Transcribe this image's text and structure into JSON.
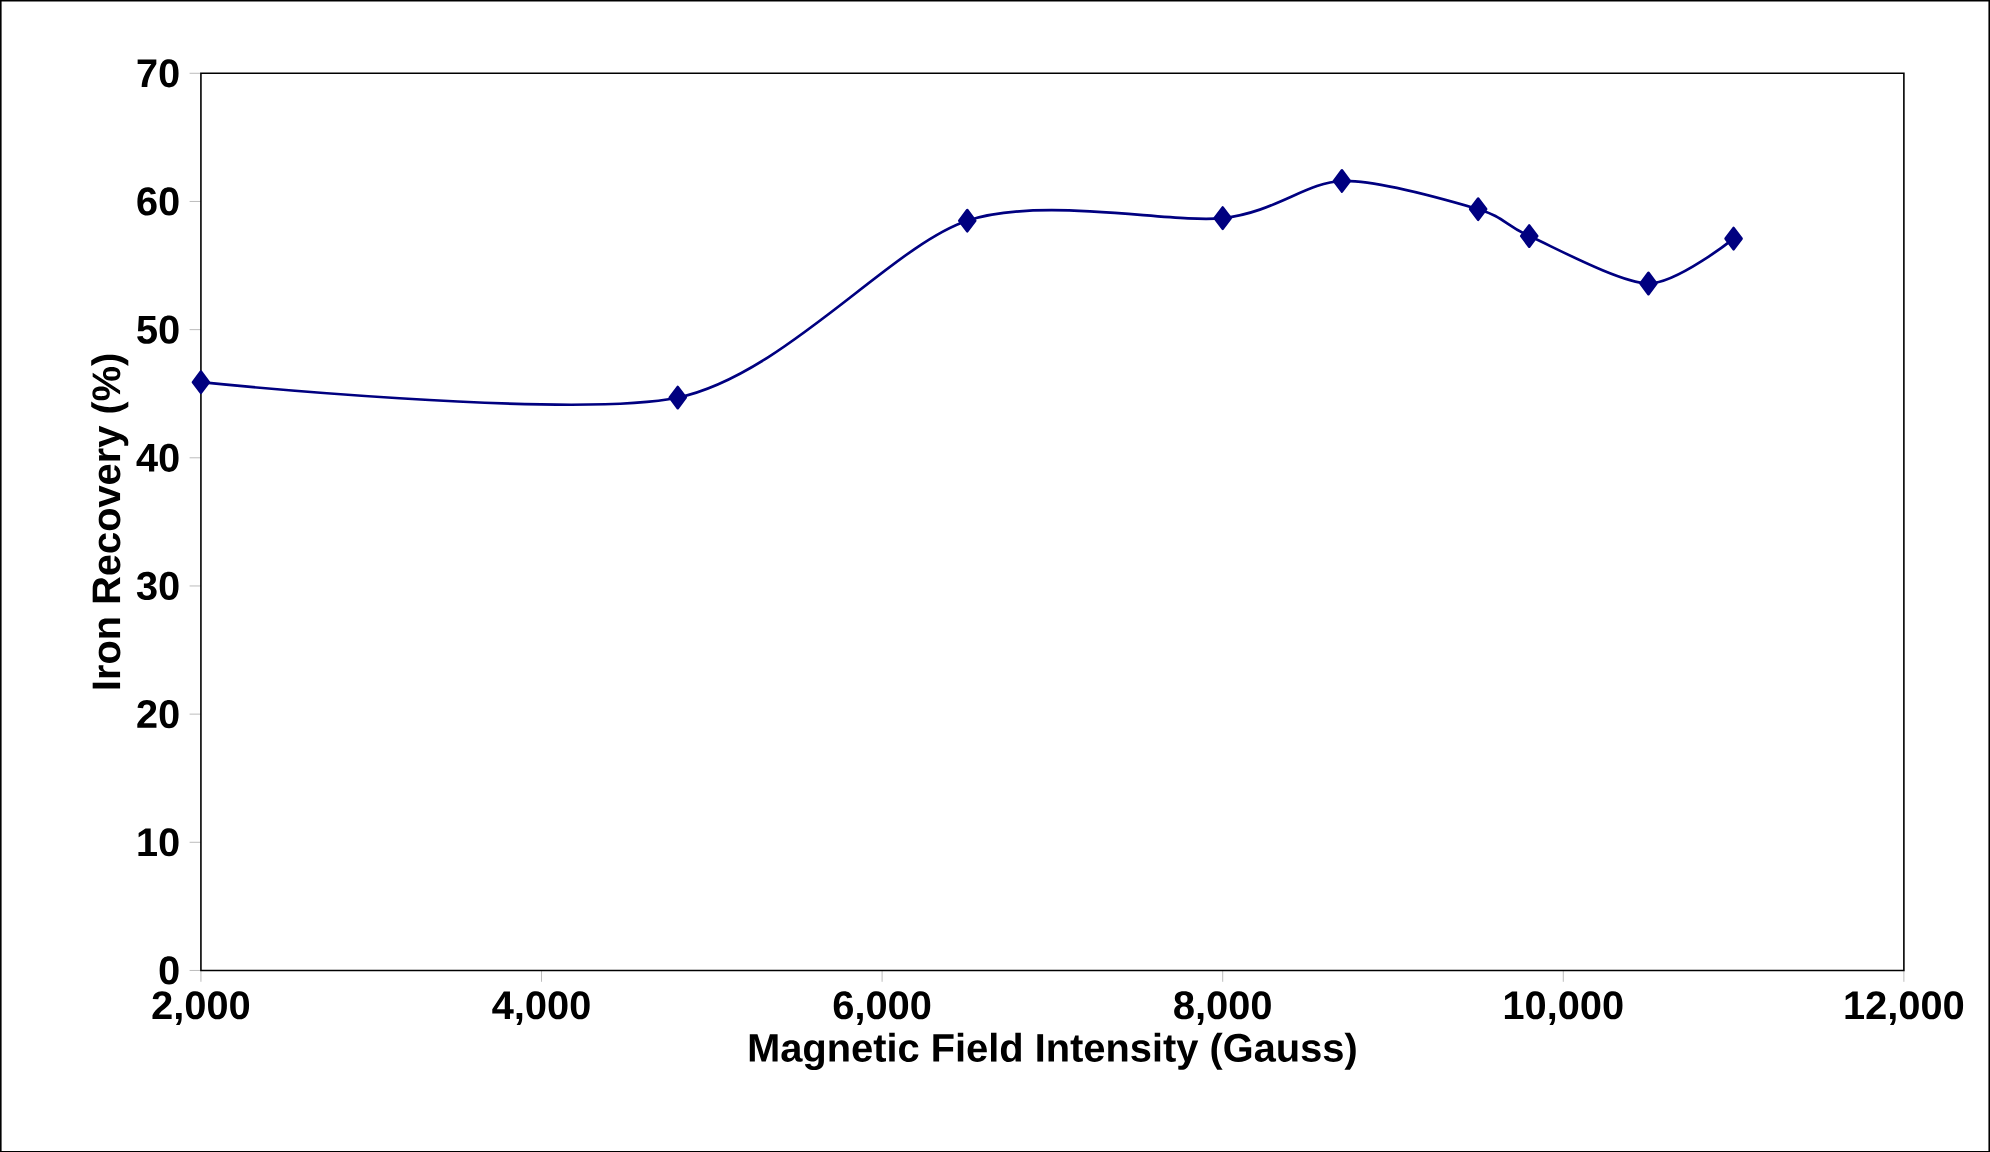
{
  "chart_data": {
    "type": "line",
    "xlabel": "Magnetic Field Intensity (Gauss)",
    "ylabel": "Iron Recovery (%)",
    "x": [
      2000,
      4800,
      6500,
      8000,
      8700,
      9500,
      9800,
      10500,
      11000
    ],
    "series": [
      {
        "color": "#000080",
        "values": [
          45.9,
          44.7,
          58.5,
          58.7,
          61.6,
          59.4,
          57.3,
          53.6,
          57.1
        ]
      }
    ],
    "xlim": [
      2000,
      12000
    ],
    "xticks": [
      {
        "value": 2000,
        "label": "2,000"
      },
      {
        "value": 4000,
        "label": "4,000"
      },
      {
        "value": 6000,
        "label": "6,000"
      },
      {
        "value": 8000,
        "label": "8,000"
      },
      {
        "value": 10000,
        "label": "10,000"
      },
      {
        "value": 12000,
        "label": "12,000"
      }
    ],
    "ylim": [
      0,
      70
    ],
    "yticks": [
      0,
      10,
      20,
      30,
      40,
      50,
      60,
      70
    ],
    "grid": false,
    "legend": false,
    "marker": "diamond",
    "line_style": "solid"
  }
}
